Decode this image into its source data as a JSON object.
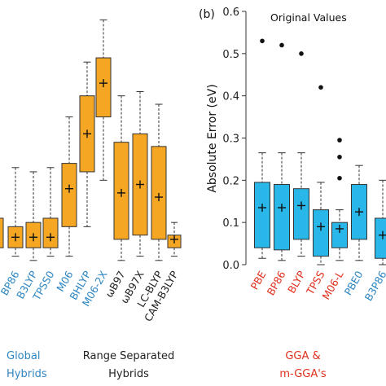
{
  "chart_data": [
    {
      "type": "box",
      "panel": "",
      "ylabel": "",
      "ylim": [
        0,
        0.6
      ],
      "box_color": "#F5A623",
      "categories": [
        "BP86",
        "B3LYP",
        "TPSS0",
        "M06",
        "BHLYP",
        "M06-2X",
        "ωB97",
        "ωB97X",
        "LC-BLYP",
        "CAM-B3LYP"
      ],
      "label_colors": [
        "#2E86C1",
        "#2E86C1",
        "#2E86C1",
        "#2E86C1",
        "#2E86C1",
        "#2E86C1",
        "#222222",
        "#222222",
        "#222222",
        "#222222"
      ],
      "boxes": [
        {
          "min": 0.02,
          "q1": 0.04,
          "median": 0.065,
          "q3": 0.09,
          "max": 0.23,
          "mean": 0.065
        },
        {
          "min": 0.01,
          "q1": 0.04,
          "median": 0.065,
          "q3": 0.1,
          "max": 0.22,
          "mean": 0.065
        },
        {
          "min": 0.02,
          "q1": 0.04,
          "median": 0.065,
          "q3": 0.11,
          "max": 0.23,
          "mean": 0.065
        },
        {
          "min": 0.02,
          "q1": 0.09,
          "median": 0.18,
          "q3": 0.24,
          "max": 0.35,
          "mean": 0.18
        },
        {
          "min": 0.09,
          "q1": 0.22,
          "median": 0.31,
          "q3": 0.4,
          "max": 0.48,
          "mean": 0.31
        },
        {
          "min": 0.2,
          "q1": 0.35,
          "median": 0.43,
          "q3": 0.49,
          "max": 0.58,
          "mean": 0.43
        },
        {
          "min": 0.01,
          "q1": 0.06,
          "median": 0.17,
          "q3": 0.29,
          "max": 0.4,
          "mean": 0.17
        },
        {
          "min": 0.02,
          "q1": 0.07,
          "median": 0.19,
          "q3": 0.31,
          "max": 0.41,
          "mean": 0.19
        },
        {
          "min": 0.01,
          "q1": 0.06,
          "median": 0.16,
          "q3": 0.28,
          "max": 0.38,
          "mean": 0.16
        },
        {
          "min": 0.02,
          "q1": 0.04,
          "median": 0.06,
          "q3": 0.07,
          "max": 0.1,
          "mean": 0.06
        }
      ],
      "partial_first": {
        "q3": 0.11,
        "max": 0.22
      },
      "groups": [
        {
          "name": "Global Hybrids",
          "lines": [
            "Global",
            "Hybrids"
          ],
          "color": "#2E86C1"
        },
        {
          "name": "Range Separated Hybrids",
          "lines": [
            "Range Separated",
            "Hybrids"
          ],
          "color": "#222222"
        }
      ]
    },
    {
      "type": "box",
      "panel": "(b)",
      "title": "Original Values",
      "ylabel": "Absolute Error (eV)",
      "ylim": [
        0,
        0.6
      ],
      "yticks": [
        "0.0",
        "0.1",
        "0.2",
        "0.3",
        "0.4",
        "0.5",
        "0.6"
      ],
      "box_color": "#29B6E8",
      "categories": [
        "PBE",
        "BP86",
        "BLYP",
        "TPSS",
        "M06-L",
        "PBE0",
        "B3P86"
      ],
      "label_colors": [
        "#E0301E",
        "#E0301E",
        "#E0301E",
        "#E0301E",
        "#E0301E",
        "#2E86C1",
        "#2E86C1"
      ],
      "boxes": [
        {
          "min": 0.015,
          "q1": 0.04,
          "median": 0.13,
          "q3": 0.195,
          "max": 0.265,
          "mean": 0.135
        },
        {
          "min": 0.01,
          "q1": 0.035,
          "median": 0.13,
          "q3": 0.19,
          "max": 0.265,
          "mean": 0.135
        },
        {
          "min": 0.02,
          "q1": 0.06,
          "median": 0.14,
          "q3": 0.18,
          "max": 0.265,
          "mean": 0.14
        },
        {
          "min": 0.0,
          "q1": 0.02,
          "median": 0.09,
          "q3": 0.13,
          "max": 0.195,
          "mean": 0.09
        },
        {
          "min": 0.01,
          "q1": 0.04,
          "median": 0.085,
          "q3": 0.1,
          "max": 0.13,
          "mean": 0.085
        },
        {
          "min": 0.01,
          "q1": 0.06,
          "median": 0.125,
          "q3": 0.19,
          "max": 0.235,
          "mean": 0.125
        },
        {
          "min": 0.0,
          "q1": 0.015,
          "median": 0.07,
          "q3": 0.11,
          "max": 0.2,
          "mean": 0.07
        }
      ],
      "outliers": [
        {
          "category": "PBE",
          "value": 0.53
        },
        {
          "category": "BP86",
          "value": 0.52
        },
        {
          "category": "BLYP",
          "value": 0.5
        },
        {
          "category": "TPSS",
          "value": 0.42
        },
        {
          "category": "M06-L",
          "value": 0.295
        },
        {
          "category": "M06-L",
          "value": 0.255
        },
        {
          "category": "M06-L",
          "value": 0.205
        }
      ],
      "groups": [
        {
          "name": "GGA & m-GGA's",
          "lines": [
            "GGA &",
            "m-GGA's"
          ],
          "color": "#E0301E"
        }
      ]
    }
  ]
}
